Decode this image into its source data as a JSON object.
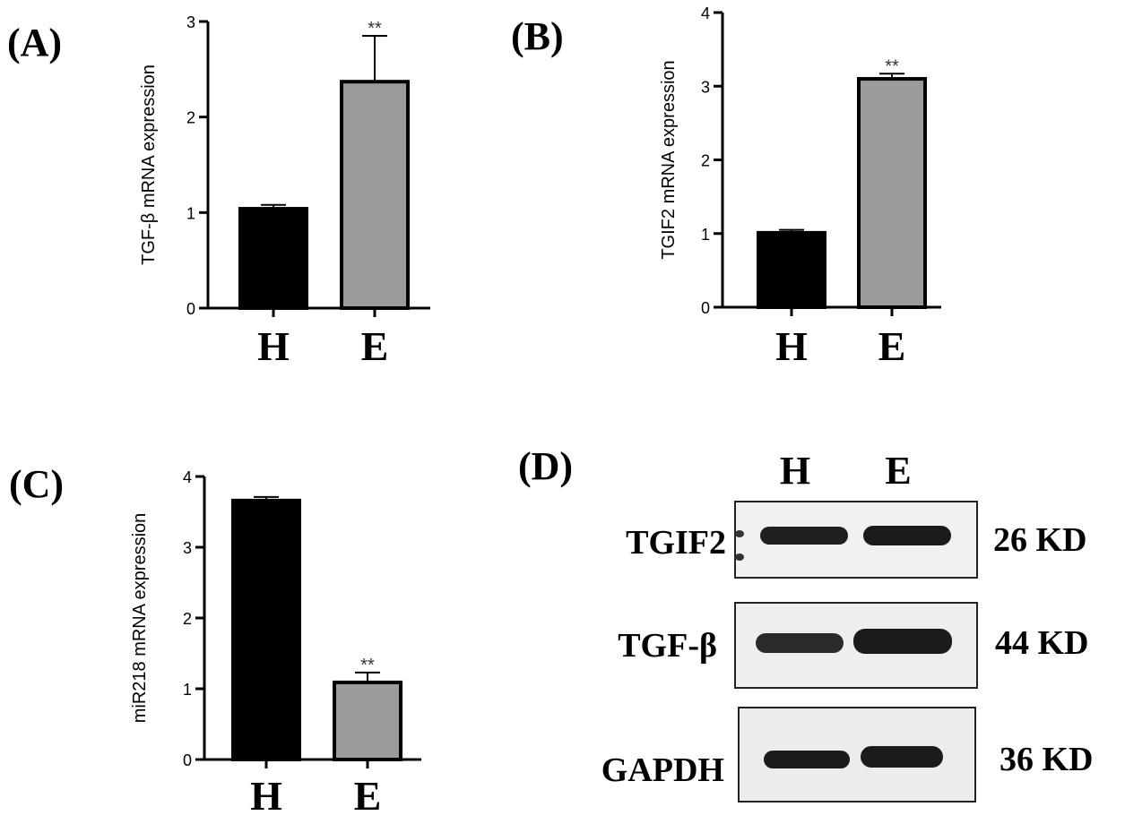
{
  "chart_data": [
    {
      "type": "bar",
      "panel": "(A)",
      "categories": [
        "H",
        "E"
      ],
      "values": [
        1.04,
        2.37
      ],
      "errors": [
        0.04,
        0.48
      ],
      "significance": [
        "",
        "**"
      ],
      "colors": [
        "#000000",
        "#9b9b9b"
      ],
      "ylabel": "TGF-β mRNA expression",
      "ylim": [
        0,
        3
      ],
      "yticks": [
        0,
        1,
        2,
        3
      ]
    },
    {
      "type": "bar",
      "panel": "(B)",
      "categories": [
        "H",
        "E"
      ],
      "values": [
        1.01,
        3.1
      ],
      "errors": [
        0.04,
        0.07
      ],
      "significance": [
        "",
        "**"
      ],
      "colors": [
        "#000000",
        "#9b9b9b"
      ],
      "ylabel": "TGIF2 mRNA expression",
      "ylim": [
        0,
        4
      ],
      "yticks": [
        0,
        1,
        2,
        3,
        4
      ]
    },
    {
      "type": "bar",
      "panel": "(C)",
      "categories": [
        "H",
        "E"
      ],
      "values": [
        3.66,
        1.09
      ],
      "errors": [
        0.05,
        0.14
      ],
      "significance": [
        "",
        "**"
      ],
      "colors": [
        "#000000",
        "#9b9b9b"
      ],
      "ylabel": "miR218 mRNA expression",
      "ylim": [
        0,
        4
      ],
      "yticks": [
        0,
        1,
        2,
        3,
        4
      ]
    }
  ],
  "blot": {
    "panel": "(D)",
    "lanes": [
      "H",
      "E"
    ],
    "rows": [
      {
        "protein": "TGIF2",
        "size": "26 KD",
        "intensity": [
          0.85,
          0.9
        ]
      },
      {
        "protein": "TGF-β",
        "size": "44 KD",
        "intensity": [
          0.75,
          0.9
        ]
      },
      {
        "protein": "GAPDH",
        "size": "36 KD",
        "intensity": [
          0.9,
          0.9
        ]
      }
    ]
  }
}
